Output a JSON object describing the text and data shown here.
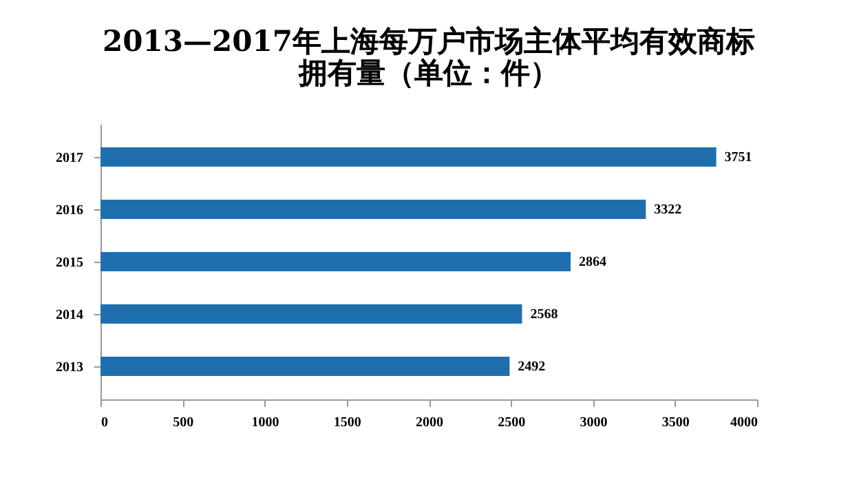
{
  "chart_data": {
    "type": "bar",
    "orientation": "horizontal",
    "title": "2013—2017年上海每万户市场主体平均有效商标拥有量（单位：件）",
    "categories": [
      "2017",
      "2016",
      "2015",
      "2014",
      "2013"
    ],
    "values": [
      3751,
      3322,
      2864,
      2568,
      2492
    ],
    "color": "#1f6fae",
    "xlim": [
      0,
      4000
    ],
    "xticks": [
      0,
      500,
      1000,
      1500,
      2000,
      2500,
      3000,
      3500,
      4000
    ],
    "data_labels": true,
    "grid": false
  }
}
